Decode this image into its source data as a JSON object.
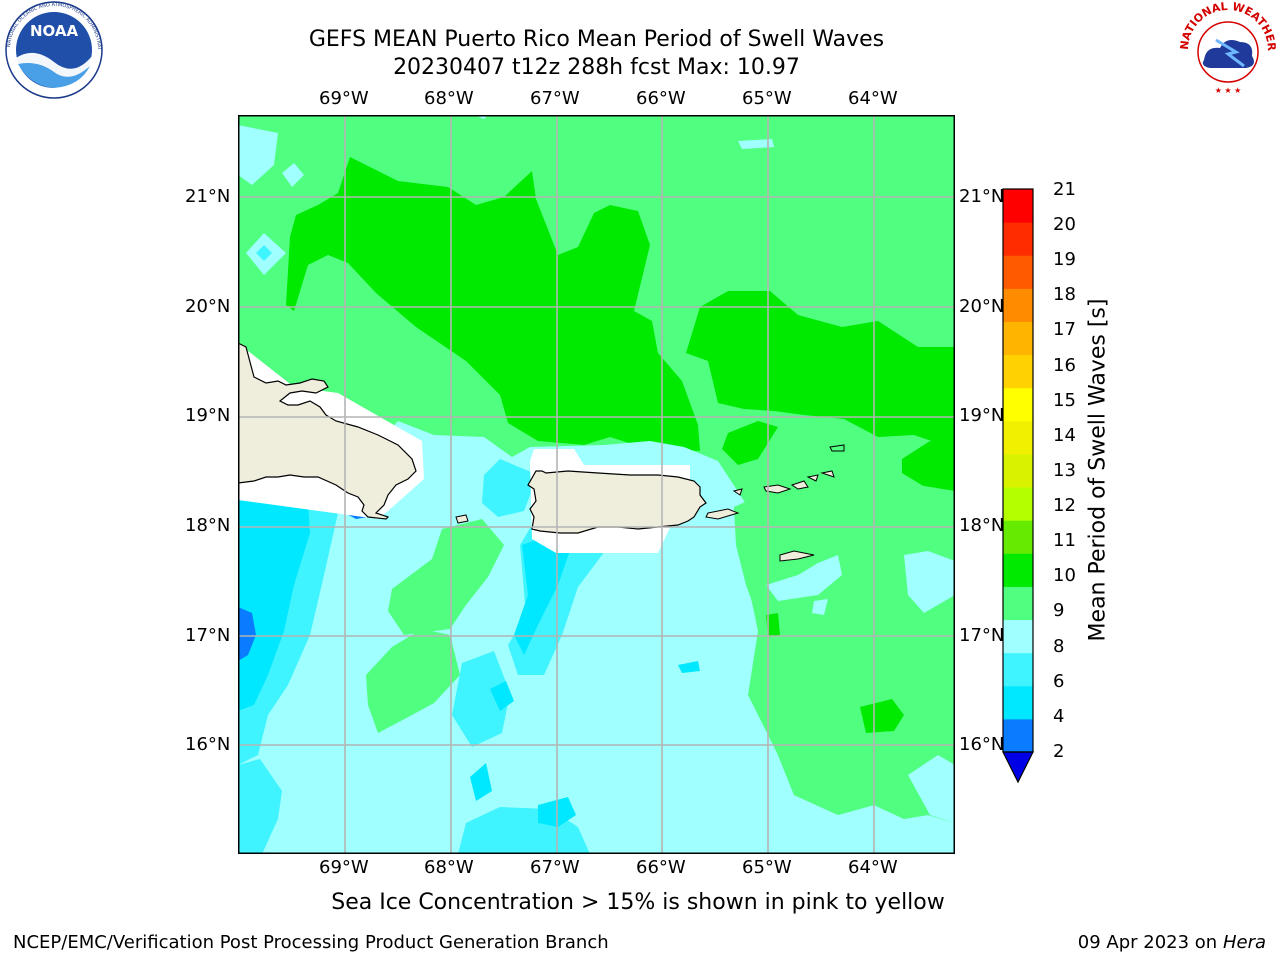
{
  "title": {
    "line1": "GEFS MEAN Puerto Rico Mean Period of Swell Waves",
    "line2": "20230407 t12z 288h fcst   Max: 10.97"
  },
  "axes": {
    "lon_labels": [
      "69°W",
      "68°W",
      "67°W",
      "66°W",
      "65°W",
      "64°W"
    ],
    "lat_labels": [
      "21°N",
      "20°N",
      "19°N",
      "18°N",
      "17°N",
      "16°N"
    ],
    "lon_range": [
      -70.0,
      -63.25
    ],
    "lat_range": [
      15.0,
      21.75
    ],
    "grid": true
  },
  "colorbar": {
    "label": "Mean Period of Swell Waves [s]",
    "ticks": [
      "21",
      "20",
      "19",
      "18",
      "17",
      "16",
      "15",
      "14",
      "13",
      "12",
      "11",
      "10",
      "9",
      "8",
      "6",
      "4",
      "2"
    ],
    "colors": [
      "#0000e6",
      "#0a7cff",
      "#00e8ff",
      "#40f4ff",
      "#a0ffff",
      "#50ff80",
      "#00ea00",
      "#66ea00",
      "#b4ff00",
      "#d8f200",
      "#f0f000",
      "#ffff00",
      "#ffd200",
      "#ffb400",
      "#ff8c00",
      "#ff5a00",
      "#ff2c00",
      "#ff0000"
    ]
  },
  "footer": {
    "note": "Sea Ice Concentration > 15% is shown in pink to yellow",
    "left": "NCEP/EMC/Verification Post Processing Product Generation Branch",
    "right_text": "09 Apr 2023 on ",
    "right_italic": "Hera"
  },
  "logos": {
    "noaa": "NOAA",
    "nws": "NATIONAL WEATHER SERVICE",
    "noaa_ring": "NATIONAL OCEANIC AND ATMOSPHERIC ADMINISTRATION · U.S. DEPARTMENT OF COMMERCE"
  },
  "palette": {
    "land": "#efeddc",
    "grid": "#b4b4b4"
  }
}
